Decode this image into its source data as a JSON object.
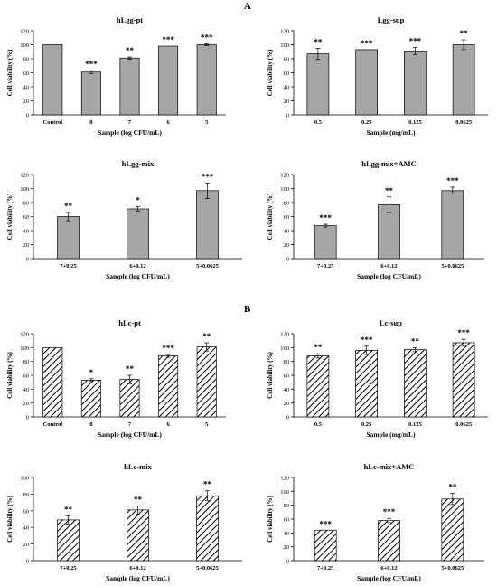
{
  "sections": [
    {
      "label": "A"
    },
    {
      "label": "B"
    }
  ],
  "chart_data": [
    {
      "type": "bar",
      "panel": "hLgg-pt",
      "fill": "gray",
      "title": "hLgg-pt",
      "xlabel": "Sample (log CFU/mL)",
      "ylabel": "Cell viability (%)",
      "ylim": [
        0,
        120
      ],
      "yticks": [
        0,
        20,
        40,
        60,
        80,
        100,
        120
      ],
      "categories": [
        "Control",
        "8",
        "7",
        "6",
        "5"
      ],
      "values": [
        100,
        61,
        81,
        98,
        100
      ],
      "errors": [
        0,
        2,
        1.5,
        0,
        1.5
      ],
      "significance": [
        "",
        "***",
        "**",
        "***",
        "***"
      ]
    },
    {
      "type": "bar",
      "panel": "Lgg-sup",
      "fill": "gray",
      "title": "Lgg-sup",
      "xlabel": "Sample (mg/mL)",
      "ylabel": "Cell viability (%)",
      "ylim": [
        0,
        120
      ],
      "yticks": [
        0,
        20,
        40,
        60,
        80,
        100,
        120
      ],
      "categories": [
        "0.5",
        "0.25",
        "0.125",
        "0.0625"
      ],
      "values": [
        87,
        93,
        91,
        100
      ],
      "errors": [
        8,
        0,
        5,
        7
      ],
      "significance": [
        "**",
        "***",
        "***",
        "**"
      ]
    },
    {
      "type": "bar",
      "panel": "hLgg-mix",
      "fill": "gray",
      "title": "hLgg-mix",
      "xlabel": "Sample (log CFU/mL)",
      "ylabel": "Cell viability (%)",
      "ylim": [
        0,
        120
      ],
      "yticks": [
        0,
        20,
        40,
        60,
        80,
        100,
        120
      ],
      "categories": [
        "7+0.25",
        "6+0.12",
        "5+0.0625"
      ],
      "values": [
        60,
        71,
        97
      ],
      "errors": [
        6,
        3,
        11
      ],
      "significance": [
        "**",
        "*",
        "***"
      ]
    },
    {
      "type": "bar",
      "panel": "hLgg-mix+AMC",
      "fill": "gray",
      "title": "hLgg-mix+AMC",
      "xlabel": "Sample (log CFU/mL)",
      "ylabel": "Cell viability (%)",
      "ylim": [
        0,
        120
      ],
      "yticks": [
        0,
        20,
        40,
        60,
        80,
        100,
        120
      ],
      "categories": [
        "7+0.25",
        "6+0.12",
        "5+0.0625"
      ],
      "values": [
        47,
        77,
        97
      ],
      "errors": [
        2,
        11,
        5
      ],
      "significance": [
        "***",
        "**",
        "***"
      ]
    },
    {
      "type": "bar",
      "panel": "hLc-pt",
      "fill": "hatch",
      "title": "hLc-pt",
      "xlabel": "Sample (log CFU/mL)",
      "ylabel": "Cell viability (%)",
      "ylim": [
        0,
        120
      ],
      "yticks": [
        0,
        20,
        40,
        60,
        80,
        100,
        120
      ],
      "categories": [
        "Control",
        "8",
        "7",
        "6",
        "5"
      ],
      "values": [
        100,
        53,
        54,
        88,
        101
      ],
      "errors": [
        0,
        2,
        6,
        2,
        6
      ],
      "significance": [
        "",
        "*",
        "**",
        "***",
        "**"
      ]
    },
    {
      "type": "bar",
      "panel": "Lc-sup",
      "fill": "hatch",
      "title": "Lc-sup",
      "xlabel": "Sample (mg/mL)",
      "ylabel": "Cell viability (%)",
      "ylim": [
        0,
        120
      ],
      "yticks": [
        0,
        20,
        40,
        60,
        80,
        100,
        120
      ],
      "categories": [
        "0.5",
        "0.25",
        "0.125",
        "0.0625"
      ],
      "values": [
        88,
        96,
        97,
        107
      ],
      "errors": [
        3,
        6,
        3,
        5
      ],
      "significance": [
        "**",
        "***",
        "**",
        "***"
      ]
    },
    {
      "type": "bar",
      "panel": "hLc-mix",
      "fill": "hatch",
      "title": "hLc-mix",
      "xlabel": "Sample (log CFU/mL)",
      "ylabel": "Cell viability (%)",
      "ylim": [
        0,
        100
      ],
      "yticks": [
        0,
        20,
        40,
        60,
        80,
        100
      ],
      "categories": [
        "7+0.25",
        "6+0.12",
        "5+0.0625"
      ],
      "values": [
        49,
        61,
        78
      ],
      "errors": [
        5,
        5,
        6
      ],
      "significance": [
        "**",
        "**",
        "**"
      ]
    },
    {
      "type": "bar",
      "panel": "hLc-mix+AMC",
      "fill": "hatch",
      "title": "hLc-mix+AMC",
      "xlabel": "Sample (log CFU/mL)",
      "ylabel": "Cell viability (%)",
      "ylim": [
        0,
        120
      ],
      "yticks": [
        0,
        20,
        40,
        60,
        80,
        100,
        120
      ],
      "categories": [
        "7+0.25",
        "6+0.12",
        "5+0.0625"
      ],
      "values": [
        44,
        58,
        89
      ],
      "errors": [
        0,
        3,
        8
      ],
      "significance": [
        "***",
        "***",
        "**"
      ]
    }
  ]
}
